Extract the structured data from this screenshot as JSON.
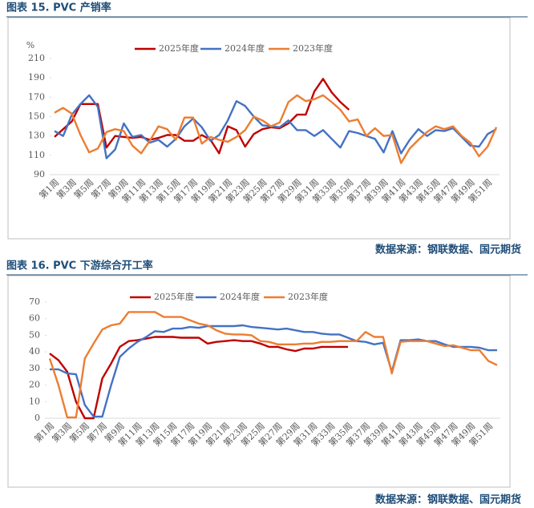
{
  "captions": [
    "图表 15.  PVC 产销率",
    "图表 16.  PVC 下游综合开工率"
  ],
  "sources": [
    "数据来源：钢联数据、国元期货",
    "数据来源：钢联数据、国元期货"
  ],
  "chart_data": [
    {
      "type": "line",
      "y_label": "%",
      "categories": [
        "第1周",
        null,
        "第3周",
        null,
        "第5周",
        null,
        "第7周",
        null,
        "第9周",
        null,
        "第11周",
        null,
        "第13周",
        null,
        "第15周",
        null,
        "第17周",
        null,
        "第19周",
        null,
        "第21周",
        null,
        "第23周",
        null,
        "第25周",
        null,
        "第27周",
        null,
        "第29周",
        null,
        "第31周",
        null,
        "第33周",
        null,
        "第35周",
        null,
        "第37周",
        null,
        "第39周",
        null,
        "第41周",
        null,
        "第43周",
        null,
        "第45周",
        null,
        "第47周",
        null,
        "第49周",
        null,
        "第51周",
        null
      ],
      "ylim": [
        90,
        210
      ],
      "yticks": [
        90,
        110,
        130,
        150,
        170,
        190,
        210
      ],
      "series": [
        {
          "name": "2025年度",
          "color": "#c00000",
          "values": [
            129,
            137,
            145,
            163,
            163,
            163,
            118,
            130,
            129,
            128,
            129,
            126,
            128,
            131,
            131,
            125,
            125,
            131,
            126,
            112,
            140,
            136,
            119,
            132,
            137,
            139,
            138,
            143,
            152,
            152,
            176,
            189,
            175,
            165,
            157,
            null,
            null,
            null,
            null,
            null,
            null,
            null,
            null,
            null,
            null,
            null,
            null,
            null,
            null,
            null,
            null,
            null
          ]
        },
        {
          "name": "2024年度",
          "color": "#4472c4",
          "values": [
            135,
            130,
            152,
            163,
            172,
            160,
            107,
            116,
            143,
            129,
            131,
            123,
            126,
            119,
            127,
            140,
            148,
            139,
            125,
            131,
            146,
            166,
            161,
            150,
            141,
            140,
            139,
            146,
            136,
            136,
            130,
            136,
            127,
            118,
            135,
            133,
            130,
            127,
            113,
            135,
            112,
            126,
            137,
            130,
            136,
            135,
            138,
            129,
            120,
            119,
            132,
            137
          ]
        },
        {
          "name": "2023年度",
          "color": "#ed7d31",
          "values": [
            154,
            159,
            153,
            131,
            113,
            117,
            134,
            137,
            135,
            120,
            112,
            125,
            140,
            137,
            126,
            149,
            149,
            122,
            129,
            126,
            124,
            129,
            136,
            150,
            146,
            140,
            144,
            165,
            172,
            166,
            168,
            172,
            165,
            157,
            145,
            147,
            130,
            138,
            130,
            131,
            102,
            117,
            126,
            134,
            140,
            137,
            140,
            130,
            123,
            109,
            119,
            139
          ]
        }
      ]
    },
    {
      "type": "line",
      "categories": [
        "第1周",
        null,
        "第3周",
        null,
        "第5周",
        null,
        "第7周",
        null,
        "第9周",
        null,
        "第11周",
        null,
        "第13周",
        null,
        "第15周",
        null,
        "第17周",
        null,
        "第19周",
        null,
        "第21周",
        null,
        "第23周",
        null,
        "第25周",
        null,
        "第27周",
        null,
        "第29周",
        null,
        "第31周",
        null,
        "第33周",
        null,
        "第35周",
        null,
        "第37周",
        null,
        "第39周",
        null,
        "第41周",
        null,
        "第43周",
        null,
        "第45周",
        null,
        "第47周",
        null,
        "第49周",
        null,
        "第51周",
        null
      ],
      "ylim": [
        0,
        70
      ],
      "yticks": [
        0,
        10,
        20,
        30,
        40,
        50,
        60,
        70
      ],
      "series": [
        {
          "name": "2025年度",
          "color": "#c00000",
          "values": [
            39,
            35,
            28,
            10,
            0,
            0,
            24,
            33,
            43,
            46.5,
            47,
            48,
            49,
            49,
            49,
            48.5,
            48.5,
            48.5,
            45,
            46,
            46.5,
            47,
            46.5,
            46.5,
            45,
            43,
            43,
            41.5,
            40.5,
            42,
            42,
            43,
            43,
            43,
            43,
            null,
            null,
            null,
            null,
            null,
            null,
            null,
            null,
            null,
            null,
            null,
            null,
            null,
            null,
            null,
            null,
            null
          ]
        },
        {
          "name": "2024年度",
          "color": "#4472c4",
          "values": [
            29.5,
            29.5,
            27,
            26.5,
            8,
            1,
            1,
            20,
            37,
            42,
            46,
            49,
            52.5,
            52,
            54,
            54,
            55,
            54.5,
            55.5,
            55.5,
            55.5,
            55.5,
            56,
            55,
            54.5,
            54,
            53.5,
            54,
            53,
            52,
            52,
            51,
            50.5,
            50.5,
            48.5,
            46.5,
            46,
            44.5,
            45.5,
            28,
            47,
            47,
            47.5,
            46.5,
            46.5,
            44.5,
            43,
            43,
            43,
            42.5,
            41,
            41
          ]
        },
        {
          "name": "2023年度",
          "color": "#ed7d31",
          "values": [
            36,
            20,
            0.5,
            0.5,
            36,
            45,
            53.5,
            56,
            57,
            64,
            64,
            64,
            64,
            61,
            61,
            61,
            59,
            57,
            56,
            53,
            51,
            50.5,
            50.5,
            50,
            46.5,
            46,
            44.5,
            44.5,
            44.5,
            45,
            45,
            46,
            46,
            46.5,
            46.5,
            46.5,
            52,
            49,
            49,
            27,
            46,
            46.5,
            46.5,
            46.5,
            45,
            43.5,
            44,
            42.5,
            41,
            41,
            34.5,
            32
          ]
        }
      ]
    }
  ]
}
